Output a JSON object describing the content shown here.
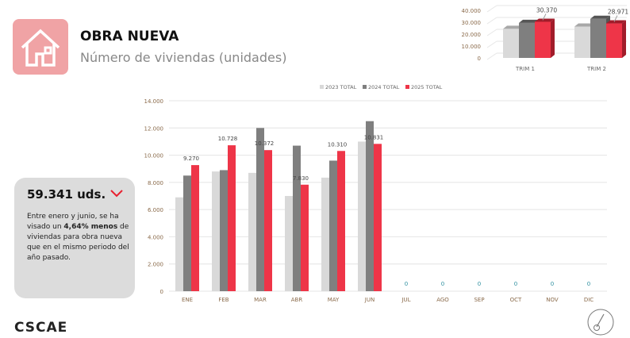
{
  "header": {
    "title": "OBRA NUEVA",
    "subtitle": "Número de viviendas (unidades)",
    "icon": "house-icon"
  },
  "summary": {
    "total": "59.341 uds.",
    "trend_icon": "chevron-down-icon",
    "text_before": "Entre enero y junio, se ha visado un ",
    "text_bold": "4,64% menos",
    "text_after": " de viviendas para obra nueva que en el mismo periodo del año pasado."
  },
  "brand": "CSCAE",
  "footer_icon": "compass-icon",
  "colors": {
    "2023": "#d9d9d9",
    "2024": "#7f7f7f",
    "2025": "#ee3548",
    "accent": "#e8202f",
    "zero_label": "#2f8fa0"
  },
  "chart_data": [
    {
      "type": "bar",
      "categories": [
        "ENE",
        "FEB",
        "MAR",
        "ABR",
        "MAY",
        "JUN",
        "JUL",
        "AGO",
        "SEP",
        "OCT",
        "NOV",
        "DIC"
      ],
      "series": [
        {
          "name": "2023 TOTAL",
          "values": [
            6900,
            8800,
            8700,
            7000,
            8350,
            11000,
            null,
            null,
            null,
            null,
            null,
            null
          ]
        },
        {
          "name": "2024 TOTAL",
          "values": [
            8500,
            8900,
            12000,
            10700,
            9600,
            12500,
            null,
            null,
            null,
            null,
            null,
            null
          ]
        },
        {
          "name": "2025 TOTAL",
          "values": [
            9270,
            10728,
            10372,
            7830,
            10310,
            10831,
            0,
            0,
            0,
            0,
            0,
            0
          ]
        }
      ],
      "data_labels": [
        "9.270",
        "10.728",
        "10.372",
        "7.830",
        "10.310",
        "10.831",
        "0",
        "0",
        "0",
        "0",
        "0",
        "0"
      ],
      "ylim": [
        0,
        14000
      ],
      "yticks": [
        "0",
        "2.000",
        "4.000",
        "6.000",
        "8.000",
        "10.000",
        "12.000",
        "14.000"
      ],
      "grid": true,
      "legend": "top"
    },
    {
      "type": "bar",
      "style": "3d",
      "categories": [
        "TRIM 1",
        "TRIM 2"
      ],
      "series": [
        {
          "name": "2023 TOTAL",
          "values": [
            24400,
            26350
          ]
        },
        {
          "name": "2024 TOTAL",
          "values": [
            29400,
            32800
          ]
        },
        {
          "name": "2025 TOTAL",
          "values": [
            30370,
            28971
          ]
        }
      ],
      "data_labels": [
        "30.370",
        "28.971"
      ],
      "ylim": [
        0,
        40000
      ],
      "yticks": [
        "0",
        "10.000",
        "20.000",
        "30.000",
        "40.000"
      ],
      "grid": true
    }
  ]
}
